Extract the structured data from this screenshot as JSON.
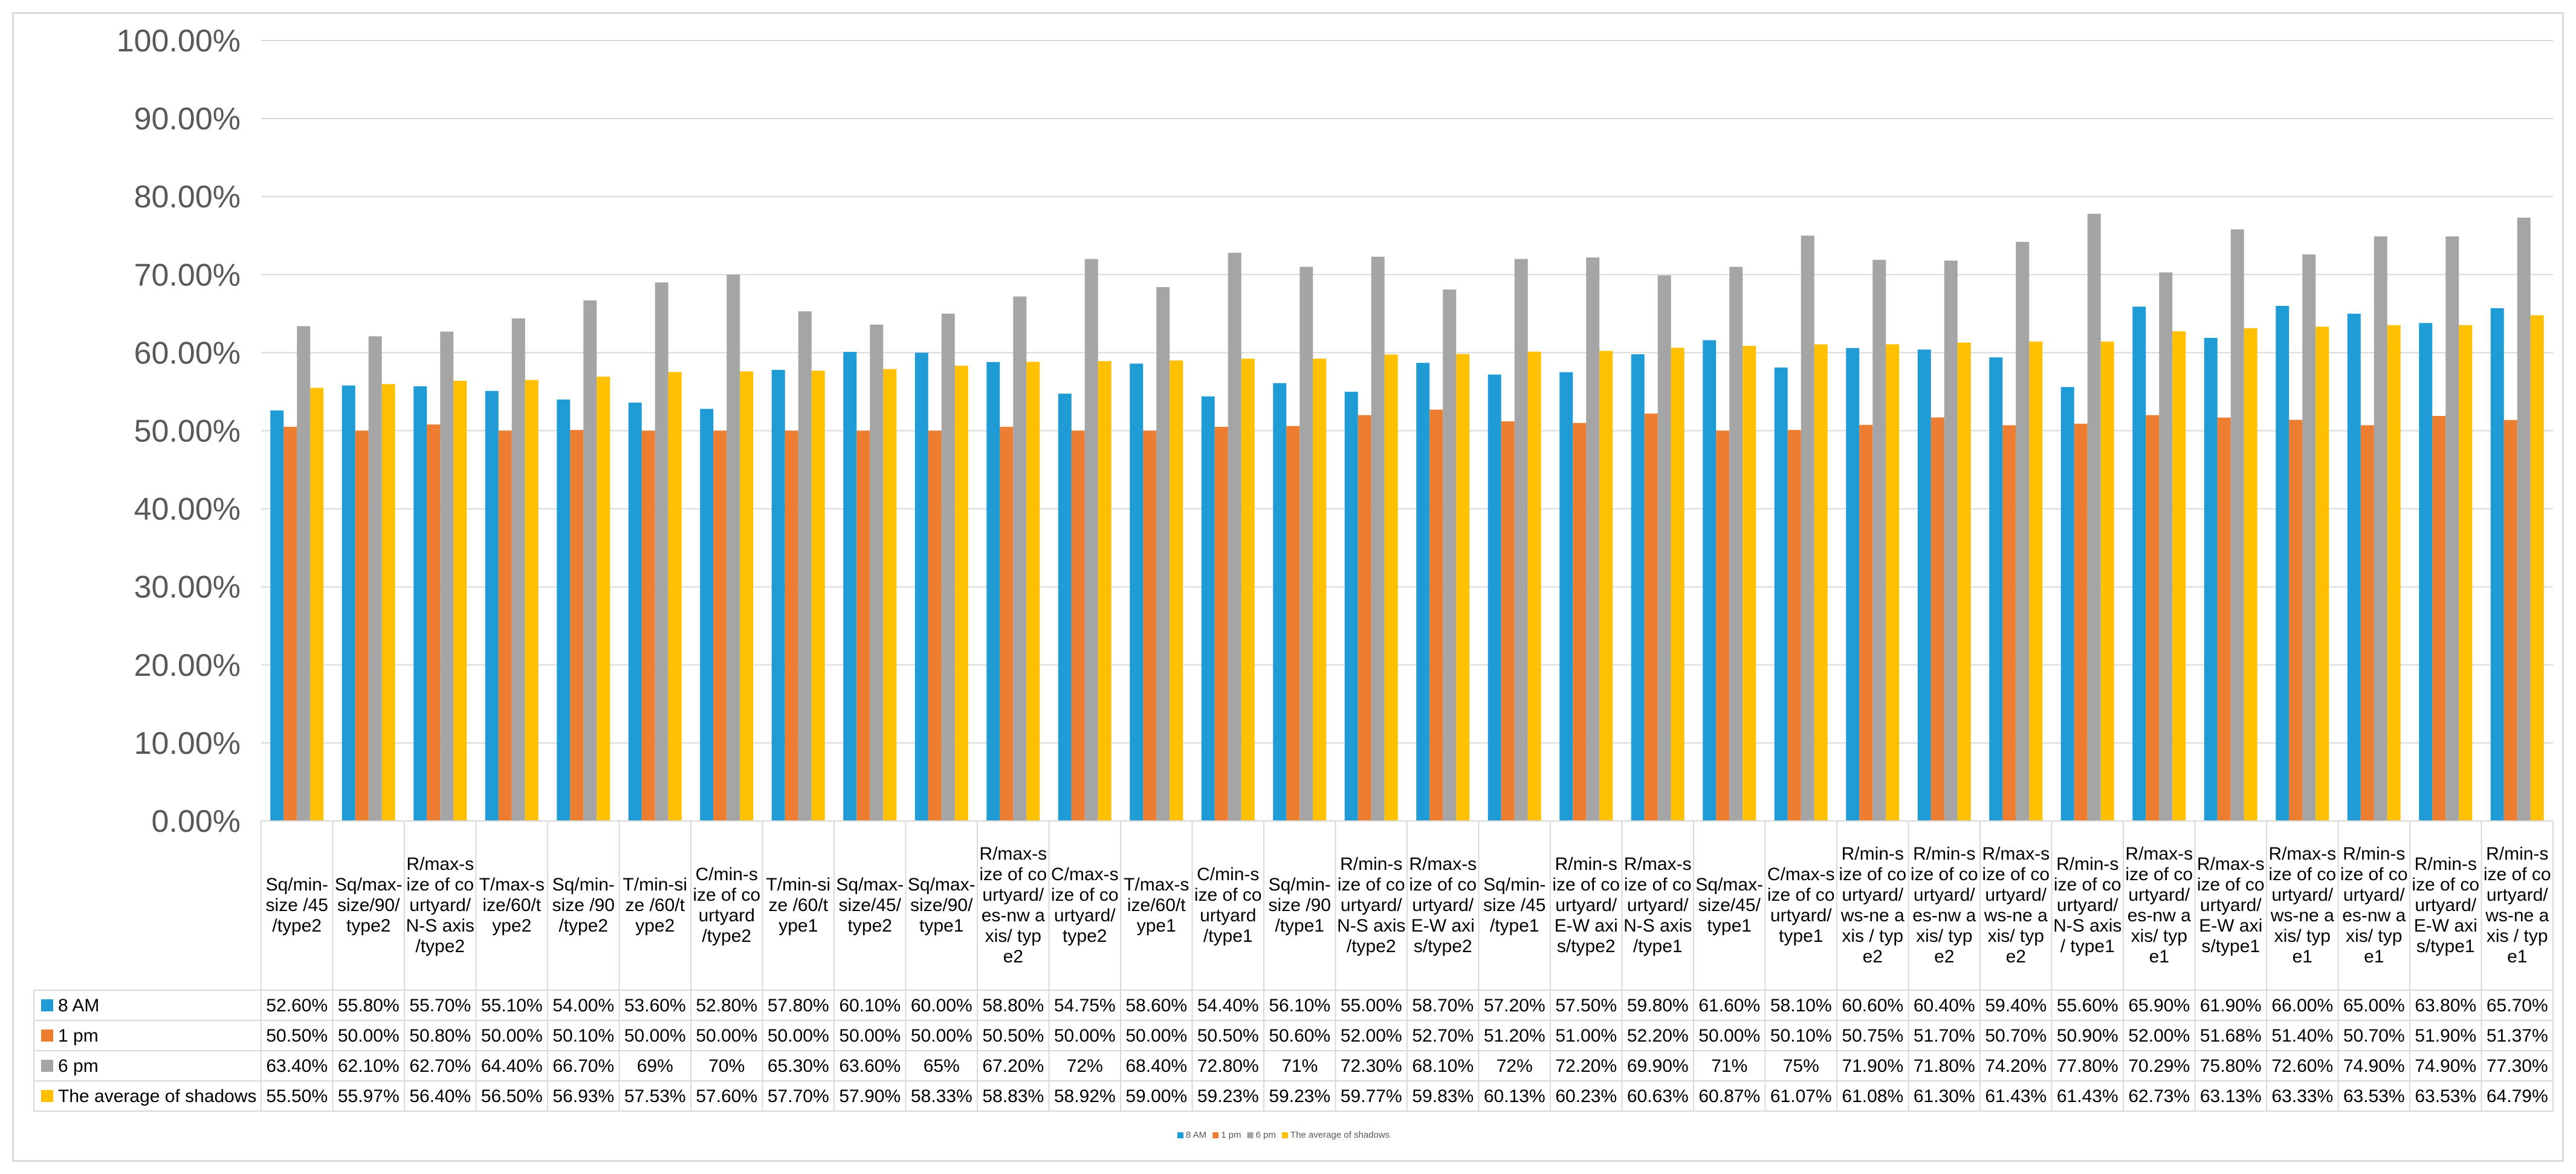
{
  "chart_data": {
    "type": "bar",
    "title": "",
    "xlabel": "",
    "ylabel": "",
    "ylim": [
      0,
      1
    ],
    "y_ticks": [
      "0.00%",
      "10.00%",
      "20.00%",
      "30.00%",
      "40.00%",
      "50.00%",
      "60.00%",
      "70.00%",
      "80.00%",
      "90.00%",
      "100.00%"
    ],
    "grid": true,
    "legend_position": "bottom",
    "categories": [
      [
        "Sq/min-",
        "size /45",
        "/type2"
      ],
      [
        "Sq/max-",
        "size/90/",
        "type2"
      ],
      [
        "R/max-s",
        "ize of co",
        "urtyard/",
        "N-S axis",
        "/type2"
      ],
      [
        "T/max-s",
        "ize/60/t",
        "ype2"
      ],
      [
        "Sq/min-",
        "size /90",
        "/type2"
      ],
      [
        "T/min-si",
        "ze /60/t",
        "ype2"
      ],
      [
        "C/min-s",
        "ize of co",
        "urtyard",
        "/type2"
      ],
      [
        "T/min-si",
        "ze /60/t",
        "ype1"
      ],
      [
        "Sq/max-",
        "size/45/",
        "type2"
      ],
      [
        "Sq/max-",
        "size/90/",
        "type1"
      ],
      [
        "R/max-s",
        "ize of co",
        "urtyard/",
        "es-nw a",
        "xis/ typ",
        "e2"
      ],
      [
        "C/max-s",
        "ize of co",
        "urtyard/",
        "type2"
      ],
      [
        "T/max-s",
        "ize/60/t",
        "ype1"
      ],
      [
        "C/min-s",
        "ize of co",
        "urtyard",
        "/type1"
      ],
      [
        "Sq/min-",
        "size /90",
        "/type1"
      ],
      [
        "R/min-s",
        "ize of co",
        "urtyard/",
        "N-S axis",
        "/type2"
      ],
      [
        "R/max-s",
        "ize of co",
        "urtyard/",
        "E-W axi",
        "s/type2"
      ],
      [
        "Sq/min-",
        "size /45",
        "/type1"
      ],
      [
        "R/min-s",
        "ize of co",
        "urtyard/",
        "E-W axi",
        "s/type2"
      ],
      [
        "R/max-s",
        "ize of co",
        "urtyard/",
        "N-S axis",
        "/type1"
      ],
      [
        "Sq/max-",
        "size/45/",
        "type1"
      ],
      [
        "C/max-s",
        "ize of co",
        "urtyard/",
        "type1"
      ],
      [
        "R/min-s",
        "ize of co",
        "urtyard/",
        "ws-ne a",
        "xis / typ",
        "e2"
      ],
      [
        "R/min-s",
        "ize of co",
        "urtyard/",
        "es-nw a",
        "xis/ typ",
        "e2"
      ],
      [
        "R/max-s",
        "ize of co",
        "urtyard/",
        "ws-ne a",
        "xis/ typ",
        "e2"
      ],
      [
        "R/min-s",
        "ize of co",
        "urtyard/",
        "N-S axis",
        "/ type1"
      ],
      [
        "R/max-s",
        "ize of co",
        "urtyard/",
        "es-nw a",
        "xis/ typ",
        "e1"
      ],
      [
        "R/max-s",
        "ize of co",
        "urtyard/",
        "E-W axi",
        "s/type1"
      ],
      [
        "R/max-s",
        "ize of co",
        "urtyard/",
        "ws-ne a",
        "xis/ typ",
        "e1"
      ],
      [
        "R/min-s",
        "ize of co",
        "urtyard/",
        "es-nw a",
        "xis/ typ",
        "e1"
      ],
      [
        "R/min-s",
        "ize of co",
        "urtyard/",
        "E-W axi",
        "s/type1"
      ],
      [
        "R/min-s",
        "ize of co",
        "urtyard/",
        "ws-ne a",
        "xis / typ",
        "e1"
      ]
    ],
    "series": [
      {
        "name": "8 AM",
        "color": "#1f9bd5",
        "values": [
          0.526,
          0.558,
          0.557,
          0.551,
          0.54,
          0.536,
          0.528,
          0.578,
          0.601,
          0.6,
          0.588,
          0.5475,
          0.586,
          0.544,
          0.561,
          0.55,
          0.587,
          0.572,
          0.575,
          0.598,
          0.616,
          0.581,
          0.606,
          0.604,
          0.594,
          0.556,
          0.659,
          0.619,
          0.66,
          0.65,
          0.638,
          0.657
        ],
        "labels": [
          "52.60%",
          "55.80%",
          "55.70%",
          "55.10%",
          "54.00%",
          "53.60%",
          "52.80%",
          "57.80%",
          "60.10%",
          "60.00%",
          "58.80%",
          "54.75%",
          "58.60%",
          "54.40%",
          "56.10%",
          "55.00%",
          "58.70%",
          "57.20%",
          "57.50%",
          "59.80%",
          "61.60%",
          "58.10%",
          "60.60%",
          "60.40%",
          "59.40%",
          "55.60%",
          "65.90%",
          "61.90%",
          "66.00%",
          "65.00%",
          "63.80%",
          "65.70%"
        ]
      },
      {
        "name": "1 pm",
        "color": "#ed7d31",
        "values": [
          0.505,
          0.5,
          0.508,
          0.5,
          0.501,
          0.5,
          0.5,
          0.5,
          0.5,
          0.5,
          0.505,
          0.5,
          0.5,
          0.505,
          0.506,
          0.52,
          0.527,
          0.512,
          0.51,
          0.522,
          0.5,
          0.501,
          0.5075,
          0.517,
          0.507,
          0.509,
          0.52,
          0.5168,
          0.514,
          0.507,
          0.519,
          0.5137
        ],
        "labels": [
          "50.50%",
          "50.00%",
          "50.80%",
          "50.00%",
          "50.10%",
          "50.00%",
          "50.00%",
          "50.00%",
          "50.00%",
          "50.00%",
          "50.50%",
          "50.00%",
          "50.00%",
          "50.50%",
          "50.60%",
          "52.00%",
          "52.70%",
          "51.20%",
          "51.00%",
          "52.20%",
          "50.00%",
          "50.10%",
          "50.75%",
          "51.70%",
          "50.70%",
          "50.90%",
          "52.00%",
          "51.68%",
          "51.40%",
          "50.70%",
          "51.90%",
          "51.37%"
        ]
      },
      {
        "name": "6 pm",
        "color": "#a5a5a5",
        "values": [
          0.634,
          0.621,
          0.627,
          0.644,
          0.667,
          0.69,
          0.7,
          0.653,
          0.636,
          0.65,
          0.672,
          0.72,
          0.684,
          0.728,
          0.71,
          0.723,
          0.681,
          0.72,
          0.722,
          0.699,
          0.71,
          0.75,
          0.719,
          0.718,
          0.742,
          0.778,
          0.7029,
          0.758,
          0.726,
          0.749,
          0.749,
          0.773
        ],
        "labels": [
          "63.40%",
          "62.10%",
          "62.70%",
          "64.40%",
          "66.70%",
          "69%",
          "70%",
          "65.30%",
          "63.60%",
          "65%",
          "67.20%",
          "72%",
          "68.40%",
          "72.80%",
          "71%",
          "72.30%",
          "68.10%",
          "72%",
          "72.20%",
          "69.90%",
          "71%",
          "75%",
          "71.90%",
          "71.80%",
          "74.20%",
          "77.80%",
          "70.29%",
          "75.80%",
          "72.60%",
          "74.90%",
          "74.90%",
          "77.30%"
        ]
      },
      {
        "name": "The average of shadows",
        "color": "#ffc000",
        "values": [
          0.555,
          0.5597,
          0.564,
          0.565,
          0.5693,
          0.5753,
          0.576,
          0.577,
          0.579,
          0.5833,
          0.5883,
          0.5892,
          0.59,
          0.5923,
          0.5923,
          0.5977,
          0.5983,
          0.6013,
          0.6023,
          0.6063,
          0.6087,
          0.6107,
          0.6108,
          0.613,
          0.6143,
          0.6143,
          0.6273,
          0.6313,
          0.6333,
          0.6353,
          0.6353,
          0.6479
        ],
        "labels": [
          "55.50%",
          "55.97%",
          "56.40%",
          "56.50%",
          "56.93%",
          "57.53%",
          "57.60%",
          "57.70%",
          "57.90%",
          "58.33%",
          "58.83%",
          "58.92%",
          "59.00%",
          "59.23%",
          "59.23%",
          "59.77%",
          "59.83%",
          "60.13%",
          "60.23%",
          "60.63%",
          "60.87%",
          "61.07%",
          "61.08%",
          "61.30%",
          "61.43%",
          "61.43%",
          "62.73%",
          "63.13%",
          "63.33%",
          "63.53%",
          "63.53%",
          "64.79%"
        ]
      }
    ]
  }
}
